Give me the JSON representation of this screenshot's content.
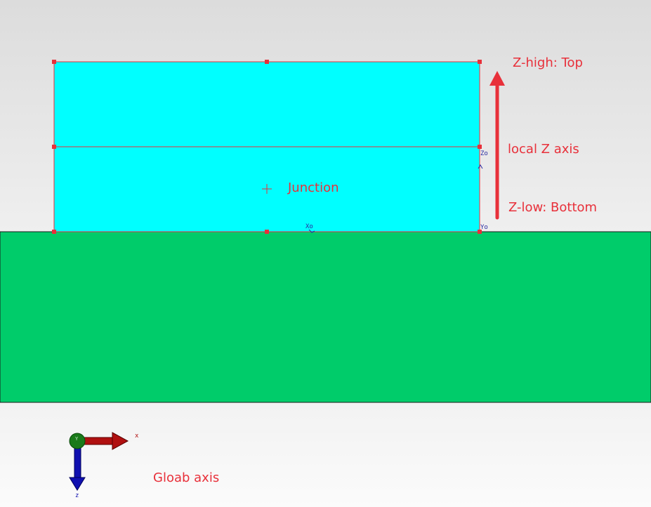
{
  "annotations": {
    "z_high": "Z-high: Top",
    "local_z_axis": "local Z axis",
    "z_low": "Z-low: Bottom",
    "junction": "Junction",
    "global_axis": "Gloab axis"
  },
  "local_axis_marks": {
    "z": "Zo",
    "y": "Yo",
    "x": "Xo"
  },
  "global_axis_marks": {
    "x": "x",
    "z": "z",
    "y": "Y"
  },
  "colors": {
    "junction_fill": "#00ffff",
    "ground_fill": "#00cc6a",
    "outline": "#e8303a",
    "annotation_text": "#e8303a",
    "global_x_arrow": "#b01010",
    "global_z_arrow": "#1010b0",
    "global_y_dot": "#1a7a1a"
  }
}
